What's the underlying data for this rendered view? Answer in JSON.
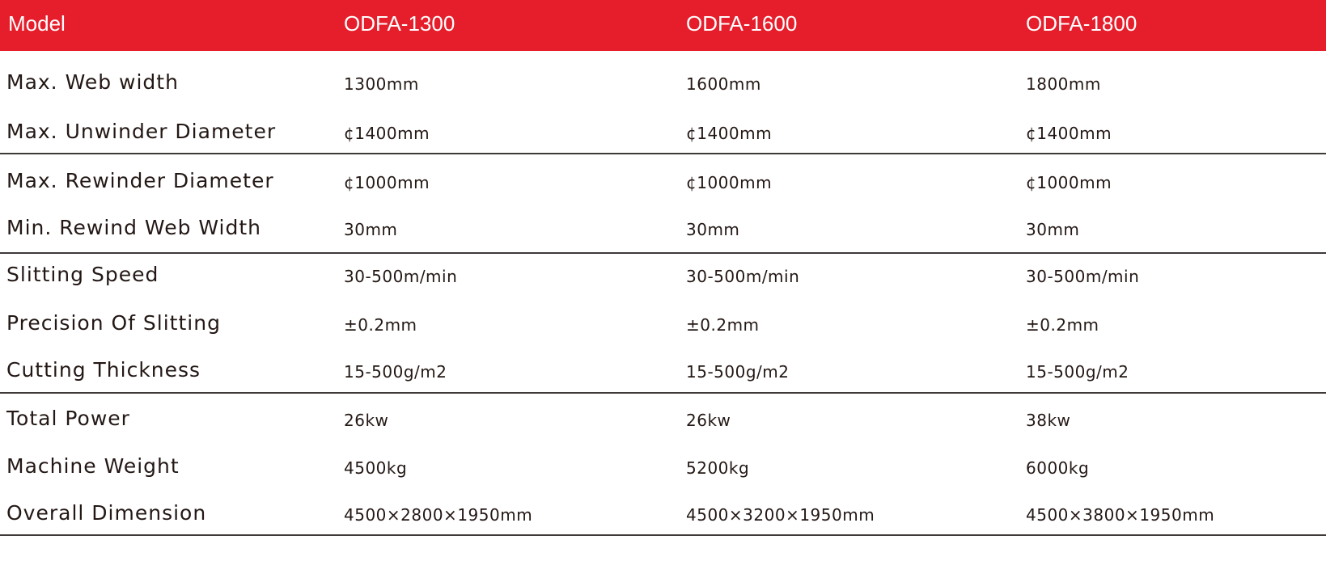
{
  "header": {
    "label": "Model",
    "models": [
      "ODFA-1300",
      "ODFA-1600",
      "ODFA-1800"
    ]
  },
  "colors": {
    "header_bg": "#e61e2b",
    "header_text": "#ffffff",
    "text": "#231815"
  },
  "rows": [
    {
      "label": "Max.  Web width",
      "values": [
        "1300mm",
        "1600mm",
        "1800mm"
      ]
    },
    {
      "label": "Max. Unwinder  Diameter",
      "values": [
        "¢1400mm",
        "¢1400mm",
        "¢1400mm"
      ]
    },
    {
      "label": "Max. Rewinder Diameter",
      "values": [
        "¢1000mm",
        "¢1000mm",
        "¢1000mm"
      ]
    },
    {
      "label": "Min. Rewind Web Width",
      "values": [
        "30mm",
        "30mm",
        "30mm"
      ]
    },
    {
      "label": "Slitting Speed",
      "values": [
        "30-500m/min",
        "30-500m/min",
        "30-500m/min"
      ]
    },
    {
      "label": "Precision Of Slitting",
      "values": [
        "±0.2mm",
        "±0.2mm",
        "±0.2mm"
      ]
    },
    {
      "label": "Cutting Thickness",
      "values": [
        "15-500g/m2",
        "15-500g/m2",
        "15-500g/m2"
      ]
    },
    {
      "label": "Total Power",
      "values": [
        "26kw",
        "26kw",
        "38kw"
      ]
    },
    {
      "label": "Machine Weight",
      "values": [
        "4500kg",
        "5200kg",
        "6000kg"
      ]
    },
    {
      "label": "Overall Dimension",
      "values": [
        "4500×2800×1950mm",
        "4500×3200×1950mm",
        "4500×3800×1950mm"
      ]
    }
  ]
}
